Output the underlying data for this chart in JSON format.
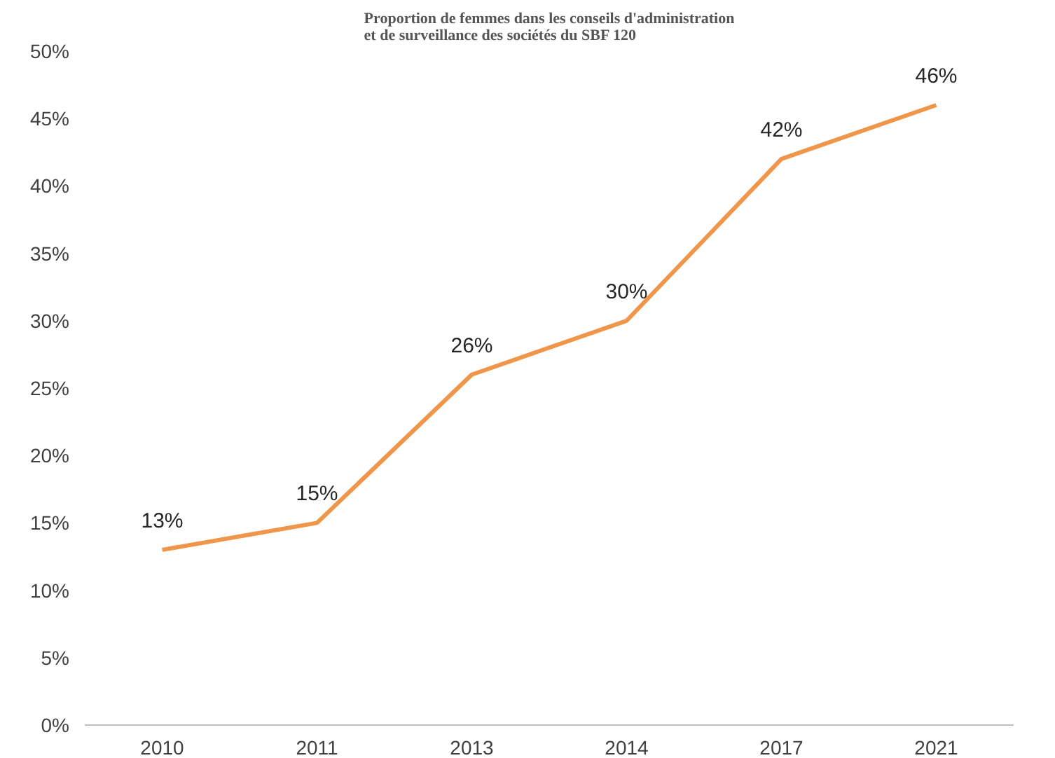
{
  "chart_data": {
    "type": "line",
    "title": "Proportion de femmes dans les conseils d'administration\net de surveillance des sociétés du SBF 120",
    "categories": [
      "2010",
      "2011",
      "2013",
      "2014",
      "2017",
      "2021"
    ],
    "series": [
      {
        "color": "#f0964a",
        "values": [
          13,
          15,
          26,
          30,
          42,
          46
        ],
        "value_labels": [
          "13%",
          "15%",
          "26%",
          "30%",
          "42%",
          "46%"
        ]
      }
    ],
    "ylim": [
      0,
      50
    ],
    "yticks": [
      {
        "value": 0,
        "label": "0%"
      },
      {
        "value": 5,
        "label": "5%"
      },
      {
        "value": 10,
        "label": "10%"
      },
      {
        "value": 15,
        "label": "15%"
      },
      {
        "value": 20,
        "label": "20%"
      },
      {
        "value": 25,
        "label": "25%"
      },
      {
        "value": 30,
        "label": "30%"
      },
      {
        "value": 35,
        "label": "35%"
      },
      {
        "value": 40,
        "label": "40%"
      },
      {
        "value": 45,
        "label": "45%"
      },
      {
        "value": 50,
        "label": "50%"
      }
    ],
    "grid": false,
    "marker": "none",
    "line_style": "solid"
  }
}
